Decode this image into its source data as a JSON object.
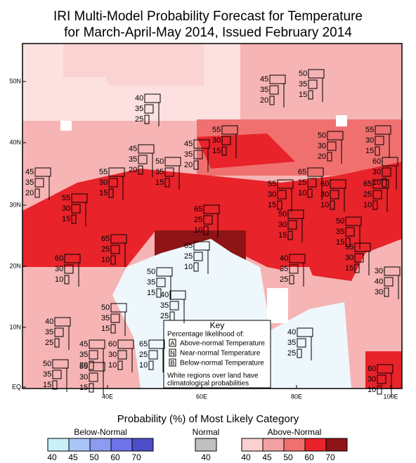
{
  "title": [
    "IRI Multi-Model Probability Forecast for Temperature",
    "for March-April-May 2014, Issued February 2014"
  ],
  "lat_labels": [
    "50N",
    "40N",
    "30N",
    "20N",
    "10N",
    "EQ"
  ],
  "lon_labels": [
    "40E",
    "60E",
    "80E",
    "100E"
  ],
  "forecasts": [
    [
      45,
      35,
      20
    ],
    [
      50,
      35,
      15
    ],
    [
      40,
      35,
      25
    ],
    [
      55,
      30,
      15
    ],
    [
      50,
      30,
      20
    ],
    [
      55,
      30,
      15
    ],
    [
      45,
      35,
      20
    ],
    [
      45,
      35,
      20
    ],
    [
      50,
      35,
      15
    ],
    [
      45,
      35,
      20
    ],
    [
      55,
      30,
      15
    ],
    [
      65,
      25,
      10
    ],
    [
      60,
      30,
      10
    ],
    [
      55,
      30,
      15
    ],
    [
      60,
      30,
      10
    ],
    [
      65,
      25,
      10
    ],
    [
      55,
      30,
      15
    ],
    [
      65,
      25,
      10
    ],
    [
      50,
      30,
      15
    ],
    [
      50,
      35,
      15
    ],
    [
      65,
      25,
      10
    ],
    [
      60,
      30,
      10
    ],
    [
      65,
      25,
      10
    ],
    [
      55,
      30,
      15
    ],
    [
      40,
      35,
      25
    ],
    [
      50,
      35,
      15
    ],
    [
      30,
      40,
      30
    ],
    [
      40,
      35,
      25
    ],
    [
      50,
      35,
      15
    ],
    [
      40,
      35,
      25
    ],
    [
      40,
      35,
      25
    ],
    [
      45,
      35,
      20
    ],
    [
      60,
      30,
      10
    ],
    [
      65,
      25,
      10
    ],
    [
      50,
      35,
      15
    ],
    [
      55,
      30,
      15
    ],
    [
      60,
      30,
      10
    ]
  ],
  "key": {
    "title": "Key",
    "subtitle": "Percentage likelihood of:",
    "rows": [
      {
        "letter": "A",
        "text": "Above-normal Temperature"
      },
      {
        "letter": "N",
        "text": "Near-normal Temperature"
      },
      {
        "letter": "B",
        "text": "Below-normal Temperature"
      }
    ],
    "note": [
      "White regions over land have",
      "climatological probabilities"
    ]
  },
  "legend": {
    "title": "Probability (%) of Most Likely Category",
    "groups": [
      {
        "name": "Below-Normal",
        "labels": [
          40,
          45,
          50,
          60,
          70
        ],
        "colors": [
          "#c9f0f8",
          "#a9c4f5",
          "#8d9bf0",
          "#6f72e8",
          "#4c4fc9"
        ]
      },
      {
        "name": "Normal",
        "labels": [
          40
        ],
        "colors": [
          "#c0c0c0"
        ]
      },
      {
        "name": "Above-Normal",
        "labels": [
          40,
          45,
          50,
          60,
          70
        ],
        "colors": [
          "#fccfd0",
          "#f3a2a4",
          "#f07070",
          "#e8232a",
          "#8e1416"
        ]
      }
    ]
  }
}
